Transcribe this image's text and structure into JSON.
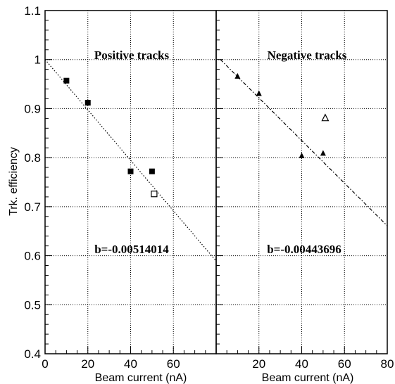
{
  "chart_data": {
    "type": "scatter",
    "ylabel": "Trk. efficiency",
    "ylim": [
      0.4,
      1.1
    ],
    "yticks": [
      "0.4",
      "0.5",
      "0.6",
      "0.7",
      "0.8",
      "0.9",
      "1",
      "1.1"
    ],
    "grid": true,
    "panels": [
      {
        "title": "Positive tracks",
        "annotation": "b=-0.00514014",
        "xlabel": "Beam current (nA)",
        "xlim": [
          0,
          80
        ],
        "xticks": [
          "0",
          "20",
          "40",
          "60"
        ],
        "series": [
          {
            "marker": "filled-square",
            "points": [
              [
                10,
                0.957
              ],
              [
                20,
                0.912
              ],
              [
                40,
                0.772
              ],
              [
                50,
                0.772
              ]
            ]
          },
          {
            "marker": "open-square",
            "points": [
              [
                51,
                0.726
              ]
            ]
          }
        ],
        "fit_line": {
          "style": "dotted",
          "x": [
            0,
            80
          ],
          "y": [
            1.0,
            0.589
          ]
        }
      },
      {
        "title": "Negative tracks",
        "annotation": "b=-0.00443696",
        "xlabel": "Beam current (nA)",
        "xlim": [
          0,
          80
        ],
        "xticks": [
          "20",
          "40",
          "60",
          "80"
        ],
        "series": [
          {
            "marker": "filled-triangle",
            "points": [
              [
                10,
                0.966
              ],
              [
                20,
                0.931
              ],
              [
                40,
                0.804
              ],
              [
                50,
                0.809
              ]
            ]
          },
          {
            "marker": "open-triangle",
            "points": [
              [
                51,
                0.881
              ]
            ]
          }
        ],
        "fit_line": {
          "style": "dash-dot",
          "x": [
            2,
            80
          ],
          "y": [
            1.0,
            0.661
          ]
        }
      }
    ]
  }
}
